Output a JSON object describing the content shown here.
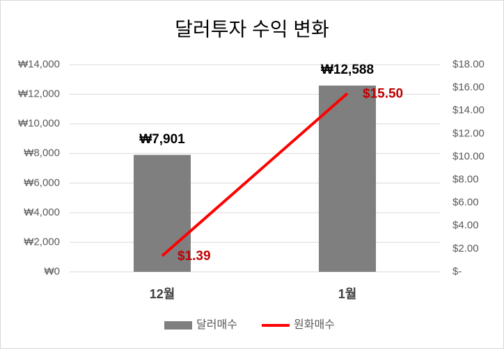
{
  "chart_data": {
    "type": "bar-line",
    "title": "달러투자 수익 변화",
    "categories": [
      "12월",
      "1월"
    ],
    "series": [
      {
        "name": "달러매수",
        "type": "bar",
        "color": "#7f7f7f",
        "values": [
          7901,
          12588
        ],
        "value_labels": [
          "₩7,901",
          "₩12,588"
        ]
      },
      {
        "name": "원화매수",
        "type": "line",
        "axis": "y2",
        "color": "#ff0000",
        "values": [
          1.39,
          15.5
        ],
        "value_labels": [
          "$1.39",
          "$15.50"
        ]
      }
    ],
    "ylim": [
      0,
      14000
    ],
    "yticks": [
      {
        "value": 0,
        "label": "₩0"
      },
      {
        "value": 2000,
        "label": "₩2,000"
      },
      {
        "value": 4000,
        "label": "₩4,000"
      },
      {
        "value": 6000,
        "label": "₩6,000"
      },
      {
        "value": 8000,
        "label": "₩8,000"
      },
      {
        "value": 10000,
        "label": "₩10,000"
      },
      {
        "value": 12000,
        "label": "₩12,000"
      },
      {
        "value": 14000,
        "label": "₩14,000"
      }
    ],
    "y2lim": [
      0,
      18
    ],
    "y2ticks": [
      {
        "value": 0,
        "label": "$-"
      },
      {
        "value": 2,
        "label": "$2.00"
      },
      {
        "value": 4,
        "label": "$4.00"
      },
      {
        "value": 6,
        "label": "$6.00"
      },
      {
        "value": 8,
        "label": "$8.00"
      },
      {
        "value": 10,
        "label": "$10.00"
      },
      {
        "value": 12,
        "label": "$12.00"
      },
      {
        "value": 14,
        "label": "$14.00"
      },
      {
        "value": 16,
        "label": "$16.00"
      },
      {
        "value": 18,
        "label": "$18.00"
      }
    ],
    "grid": true,
    "legend": "bottom"
  }
}
